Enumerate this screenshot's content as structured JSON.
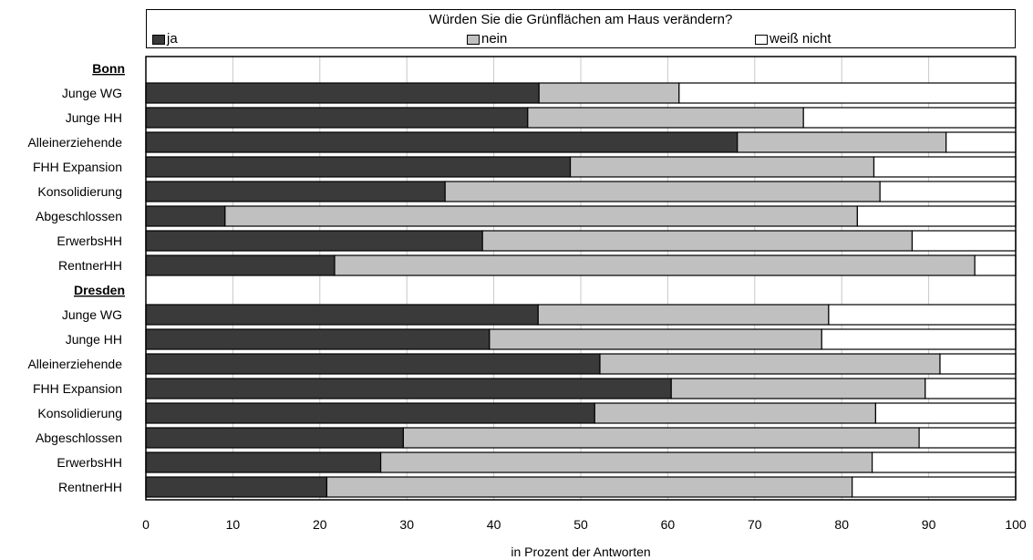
{
  "chart_data": {
    "type": "bar",
    "orientation": "horizontal",
    "stacked": true,
    "title": "Würden Sie die Grünflächen am Haus verändern?",
    "xlabel": "in Prozent der Antworten",
    "xlim": [
      0,
      100
    ],
    "xticks": [
      "0",
      "10",
      "20",
      "30",
      "40",
      "50",
      "60",
      "70",
      "80",
      "90",
      "100"
    ],
    "grid": true,
    "legend_position": "top",
    "series": [
      {
        "name": "ja",
        "color": "#3a3a3a"
      },
      {
        "name": "nein",
        "color": "#c0c0c0"
      },
      {
        "name": "weiß nicht",
        "color": "#ffffff"
      }
    ],
    "groups": [
      {
        "name": "Bonn",
        "rows": [
          {
            "label": "Junge WG",
            "values": [
              45.2,
              16.1,
              38.7
            ]
          },
          {
            "label": "Junge HH",
            "values": [
              43.9,
              31.7,
              24.4
            ]
          },
          {
            "label": "Alleinerziehende",
            "values": [
              68.0,
              24.0,
              8.0
            ]
          },
          {
            "label": "FHH Expansion",
            "values": [
              48.8,
              34.9,
              16.3
            ]
          },
          {
            "label": "Konsolidierung",
            "values": [
              34.4,
              50.0,
              15.6
            ]
          },
          {
            "label": "Abgeschlossen",
            "values": [
              9.1,
              72.7,
              18.2
            ]
          },
          {
            "label": "ErwerbsHH",
            "values": [
              38.7,
              49.4,
              11.9
            ]
          },
          {
            "label": "RentnerHH",
            "values": [
              21.7,
              73.6,
              4.7
            ]
          }
        ]
      },
      {
        "name": "Dresden",
        "rows": [
          {
            "label": "Junge WG",
            "values": [
              45.1,
              33.4,
              21.5
            ]
          },
          {
            "label": "Junge HH",
            "values": [
              39.5,
              38.2,
              22.3
            ]
          },
          {
            "label": "Alleinerziehende",
            "values": [
              52.2,
              39.1,
              8.7
            ]
          },
          {
            "label": "FHH Expansion",
            "values": [
              60.4,
              29.2,
              10.4
            ]
          },
          {
            "label": "Konsolidierung",
            "values": [
              51.6,
              32.3,
              16.1
            ]
          },
          {
            "label": "Abgeschlossen",
            "values": [
              29.6,
              59.3,
              11.1
            ]
          },
          {
            "label": "ErwerbsHH",
            "values": [
              27.0,
              56.5,
              16.5
            ]
          },
          {
            "label": "RentnerHH",
            "values": [
              20.8,
              60.4,
              18.8
            ]
          }
        ]
      }
    ]
  }
}
